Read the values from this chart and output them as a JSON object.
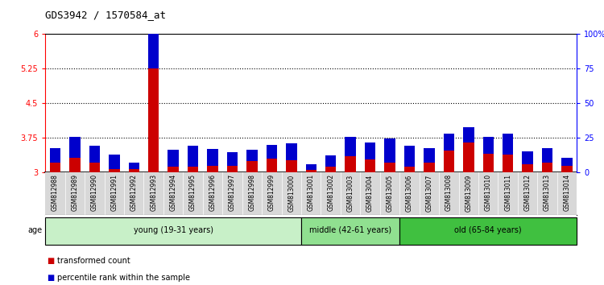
{
  "title": "GDS3942 / 1570584_at",
  "samples": [
    "GSM812988",
    "GSM812989",
    "GSM812990",
    "GSM812991",
    "GSM812992",
    "GSM812993",
    "GSM812994",
    "GSM812995",
    "GSM812996",
    "GSM812997",
    "GSM812998",
    "GSM812999",
    "GSM813000",
    "GSM813001",
    "GSM813002",
    "GSM813003",
    "GSM813004",
    "GSM813005",
    "GSM813006",
    "GSM813007",
    "GSM813008",
    "GSM813009",
    "GSM813010",
    "GSM813011",
    "GSM813012",
    "GSM813013",
    "GSM813014"
  ],
  "red_values": [
    3.22,
    3.32,
    3.22,
    3.08,
    3.07,
    5.25,
    3.13,
    3.13,
    3.14,
    3.14,
    3.25,
    3.3,
    3.27,
    3.05,
    3.13,
    3.35,
    3.28,
    3.22,
    3.13,
    3.22,
    3.48,
    3.65,
    3.4,
    3.38,
    3.18,
    3.22,
    3.14
  ],
  "blue_pct": [
    10,
    15,
    12,
    10,
    5,
    44,
    12,
    15,
    12,
    10,
    8,
    10,
    12,
    4,
    8,
    14,
    12,
    17,
    15,
    10,
    12,
    11,
    12,
    15,
    9,
    10,
    6
  ],
  "red_base": 3.0,
  "groups": [
    {
      "label": "young (19-31 years)",
      "start": 0,
      "end": 13,
      "color": "#c8f0c8"
    },
    {
      "label": "middle (42-61 years)",
      "start": 13,
      "end": 18,
      "color": "#90e090"
    },
    {
      "label": "old (65-84 years)",
      "start": 18,
      "end": 27,
      "color": "#40c040"
    }
  ],
  "ylim_left": [
    3.0,
    6.0
  ],
  "ylim_right": [
    0,
    100
  ],
  "yticks_left": [
    3.0,
    3.75,
    4.5,
    5.25,
    6.0
  ],
  "yticks_left_labels": [
    "3",
    "3.75",
    "4.5",
    "5.25",
    "6"
  ],
  "yticks_right": [
    0,
    25,
    50,
    75,
    100
  ],
  "yticks_right_labels": [
    "0",
    "25",
    "50",
    "75",
    "100%"
  ],
  "hlines": [
    3.75,
    4.5,
    5.25
  ],
  "bar_width": 0.55,
  "red_color": "#cc0000",
  "blue_color": "#0000cc",
  "sample_col_bg": "#d8d8d8",
  "plot_bg_color": "#ffffff",
  "legend_red": "transformed count",
  "legend_blue": "percentile rank within the sample",
  "age_label": "age",
  "title_fontsize": 9,
  "tick_fontsize": 7,
  "label_fontsize": 7.5
}
